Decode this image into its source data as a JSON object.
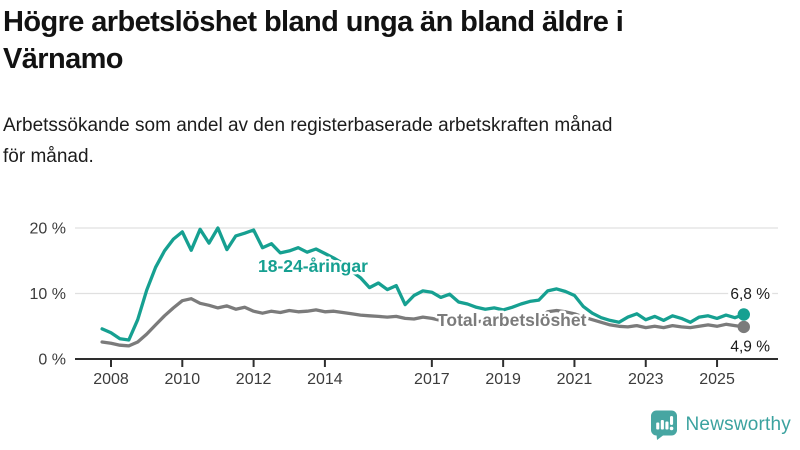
{
  "header": {
    "title_lines": [
      "Högre arbetslöshet bland unga än bland äldre i",
      "Värnamo"
    ],
    "subtitle_lines": [
      "Arbetssökande som andel av den registerbaserade arbetskraften månad",
      "för månad."
    ]
  },
  "chart_data": {
    "type": "line",
    "title": "Högre arbetslöshet bland unga än bland äldre i Värnamo",
    "subtitle": "Arbetssökande som andel av den registerbaserade arbetskraften månad för månad.",
    "x_unit": "year (decimal years, monthly series sampled quarterly)",
    "x_start": 2007.75,
    "x_step": 0.25,
    "ylim": [
      0,
      21
    ],
    "grid": "horizontal",
    "legend": "inline-labels",
    "yticks": [
      {
        "value": 0,
        "label": "0 %"
      },
      {
        "value": 10,
        "label": "10 %"
      },
      {
        "value": 20,
        "label": "20 %"
      }
    ],
    "xtick_labels": [
      "2008",
      "2010",
      "2012",
      "2014",
      "2017",
      "2019",
      "2021",
      "2023",
      "2025"
    ],
    "series": [
      {
        "name": "18-24-åringar",
        "color": "#16A091",
        "end_value": 6.8,
        "end_label": "6,8 %",
        "values": [
          4.6,
          4.0,
          3.1,
          2.9,
          6.0,
          10.5,
          14.0,
          16.5,
          18.3,
          19.4,
          16.6,
          19.8,
          17.7,
          20.0,
          16.7,
          18.8,
          19.2,
          19.7,
          17.0,
          17.6,
          16.2,
          16.5,
          17.0,
          16.3,
          16.8,
          16.1,
          15.4,
          14.6,
          13.4,
          12.4,
          10.9,
          11.6,
          10.6,
          11.2,
          8.3,
          9.7,
          10.4,
          10.2,
          9.4,
          9.9,
          8.7,
          8.4,
          7.9,
          7.6,
          7.8,
          7.5,
          7.9,
          8.4,
          8.8,
          9.0,
          10.4,
          10.7,
          10.3,
          9.7,
          8.0,
          7.0,
          6.3,
          5.9,
          5.6,
          6.4,
          6.9,
          6.0,
          6.5,
          5.9,
          6.6,
          6.2,
          5.6,
          6.4,
          6.6,
          6.2,
          6.7,
          6.3,
          6.8
        ]
      },
      {
        "name": "Total arbetslöshet",
        "color": "#7b7b7b",
        "end_value": 4.9,
        "end_label": "4,9 %",
        "values": [
          2.6,
          2.4,
          2.1,
          2.0,
          2.6,
          3.8,
          5.2,
          6.6,
          7.8,
          8.9,
          9.2,
          8.5,
          8.2,
          7.8,
          8.1,
          7.6,
          7.9,
          7.3,
          7.0,
          7.3,
          7.1,
          7.4,
          7.2,
          7.3,
          7.5,
          7.2,
          7.3,
          7.1,
          6.9,
          6.7,
          6.6,
          6.5,
          6.4,
          6.5,
          6.2,
          6.1,
          6.4,
          6.2,
          5.9,
          5.8,
          5.9,
          5.8,
          5.7,
          5.8,
          5.6,
          5.8,
          5.9,
          6.1,
          6.2,
          6.3,
          7.2,
          7.4,
          7.2,
          6.9,
          6.4,
          6.0,
          5.6,
          5.2,
          5.0,
          4.9,
          5.1,
          4.8,
          5.0,
          4.8,
          5.1,
          4.9,
          4.8,
          5.0,
          5.2,
          5.0,
          5.3,
          5.1,
          4.9
        ]
      }
    ]
  },
  "footer": {
    "brand": "Newsworthy",
    "brand_color": "#3BA29F",
    "logo_color": "#47A6A2"
  }
}
